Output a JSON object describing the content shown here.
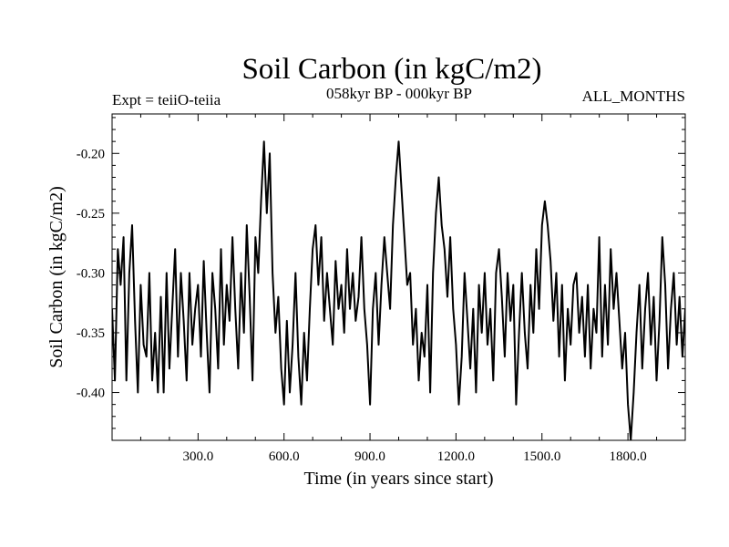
{
  "header": {
    "subtitle": "058kyr BP - 000kyr BP",
    "expt": "Expt = teiiO-teiia",
    "period": "ALL_MONTHS"
  },
  "chart_data": {
    "type": "line",
    "title": "Soil Carbon (in kgC/m2)",
    "xlabel": "Time (in years since start)",
    "ylabel": "Soil Carbon (in kgC/m2)",
    "xlim": [
      0,
      2000
    ],
    "ylim": [
      -0.44,
      -0.167
    ],
    "xticks": [
      300,
      600,
      900,
      1200,
      1500,
      1800
    ],
    "xtick_labels": [
      "300.0",
      "600.0",
      "900.0",
      "1200.0",
      "1500.0",
      "1800.0"
    ],
    "yticks": [
      -0.2,
      -0.25,
      -0.3,
      -0.35,
      -0.4
    ],
    "ytick_labels": [
      "-0.20",
      "-0.25",
      "-0.30",
      "-0.35",
      "-0.40"
    ],
    "grid": false,
    "line_color": "#000000",
    "series": [
      {
        "x": [
          0,
          10,
          20,
          30,
          40,
          50,
          60,
          70,
          80,
          90,
          100,
          110,
          120,
          130,
          140,
          150,
          160,
          170,
          180,
          190,
          200,
          210,
          220,
          230,
          240,
          250,
          260,
          270,
          280,
          290,
          300,
          310,
          320,
          330,
          340,
          350,
          360,
          370,
          380,
          390,
          400,
          410,
          420,
          430,
          440,
          450,
          460,
          470,
          480,
          490,
          500,
          510,
          520,
          530,
          540,
          550,
          560,
          570,
          580,
          590,
          600,
          610,
          620,
          630,
          640,
          650,
          660,
          670,
          680,
          690,
          700,
          710,
          720,
          730,
          740,
          750,
          760,
          770,
          780,
          790,
          800,
          810,
          820,
          830,
          840,
          850,
          860,
          870,
          880,
          890,
          900,
          910,
          920,
          930,
          940,
          950,
          960,
          970,
          980,
          990,
          1000,
          1010,
          1020,
          1030,
          1040,
          1050,
          1060,
          1070,
          1080,
          1090,
          1100,
          1110,
          1120,
          1130,
          1140,
          1150,
          1160,
          1170,
          1180,
          1190,
          1200,
          1210,
          1220,
          1230,
          1240,
          1250,
          1260,
          1270,
          1280,
          1290,
          1300,
          1310,
          1320,
          1330,
          1340,
          1350,
          1360,
          1370,
          1380,
          1390,
          1400,
          1410,
          1420,
          1430,
          1440,
          1450,
          1460,
          1470,
          1480,
          1490,
          1500,
          1510,
          1520,
          1530,
          1540,
          1550,
          1560,
          1570,
          1580,
          1590,
          1600,
          1610,
          1620,
          1630,
          1640,
          1650,
          1660,
          1670,
          1680,
          1690,
          1700,
          1710,
          1720,
          1730,
          1740,
          1750,
          1760,
          1770,
          1780,
          1790,
          1800,
          1810,
          1820,
          1830,
          1840,
          1850,
          1860,
          1870,
          1880,
          1890,
          1900,
          1910,
          1920,
          1930,
          1940,
          1950,
          1960,
          1970,
          1980,
          1990,
          2000
        ],
        "values": [
          -0.33,
          -0.39,
          -0.28,
          -0.31,
          -0.27,
          -0.39,
          -0.3,
          -0.26,
          -0.34,
          -0.4,
          -0.31,
          -0.36,
          -0.37,
          -0.3,
          -0.39,
          -0.35,
          -0.4,
          -0.32,
          -0.4,
          -0.3,
          -0.38,
          -0.33,
          -0.28,
          -0.37,
          -0.3,
          -0.34,
          -0.39,
          -0.3,
          -0.36,
          -0.33,
          -0.31,
          -0.37,
          -0.29,
          -0.35,
          -0.4,
          -0.3,
          -0.33,
          -0.38,
          -0.28,
          -0.36,
          -0.31,
          -0.34,
          -0.27,
          -0.33,
          -0.38,
          -0.3,
          -0.35,
          -0.26,
          -0.32,
          -0.39,
          -0.27,
          -0.3,
          -0.24,
          -0.19,
          -0.25,
          -0.2,
          -0.3,
          -0.35,
          -0.32,
          -0.38,
          -0.41,
          -0.34,
          -0.4,
          -0.36,
          -0.3,
          -0.37,
          -0.41,
          -0.35,
          -0.39,
          -0.33,
          -0.28,
          -0.26,
          -0.31,
          -0.27,
          -0.34,
          -0.3,
          -0.33,
          -0.36,
          -0.29,
          -0.33,
          -0.31,
          -0.35,
          -0.28,
          -0.33,
          -0.3,
          -0.34,
          -0.32,
          -0.27,
          -0.33,
          -0.36,
          -0.41,
          -0.33,
          -0.3,
          -0.36,
          -0.31,
          -0.27,
          -0.3,
          -0.33,
          -0.26,
          -0.22,
          -0.19,
          -0.23,
          -0.27,
          -0.31,
          -0.3,
          -0.36,
          -0.33,
          -0.39,
          -0.35,
          -0.37,
          -0.31,
          -0.4,
          -0.3,
          -0.25,
          -0.22,
          -0.26,
          -0.28,
          -0.32,
          -0.27,
          -0.33,
          -0.36,
          -0.41,
          -0.37,
          -0.3,
          -0.34,
          -0.38,
          -0.33,
          -0.4,
          -0.31,
          -0.35,
          -0.3,
          -0.36,
          -0.33,
          -0.39,
          -0.3,
          -0.28,
          -0.32,
          -0.37,
          -0.3,
          -0.34,
          -0.31,
          -0.41,
          -0.35,
          -0.3,
          -0.35,
          -0.38,
          -0.31,
          -0.35,
          -0.28,
          -0.33,
          -0.26,
          -0.24,
          -0.26,
          -0.29,
          -0.34,
          -0.3,
          -0.37,
          -0.31,
          -0.39,
          -0.33,
          -0.36,
          -0.31,
          -0.3,
          -0.35,
          -0.32,
          -0.37,
          -0.31,
          -0.38,
          -0.33,
          -0.35,
          -0.27,
          -0.37,
          -0.31,
          -0.36,
          -0.28,
          -0.33,
          -0.3,
          -0.34,
          -0.38,
          -0.35,
          -0.41,
          -0.44,
          -0.4,
          -0.35,
          -0.31,
          -0.38,
          -0.33,
          -0.3,
          -0.36,
          -0.32,
          -0.39,
          -0.34,
          -0.27,
          -0.31,
          -0.38,
          -0.33,
          -0.3,
          -0.36,
          -0.32,
          -0.37,
          -0.33
        ]
      }
    ]
  }
}
